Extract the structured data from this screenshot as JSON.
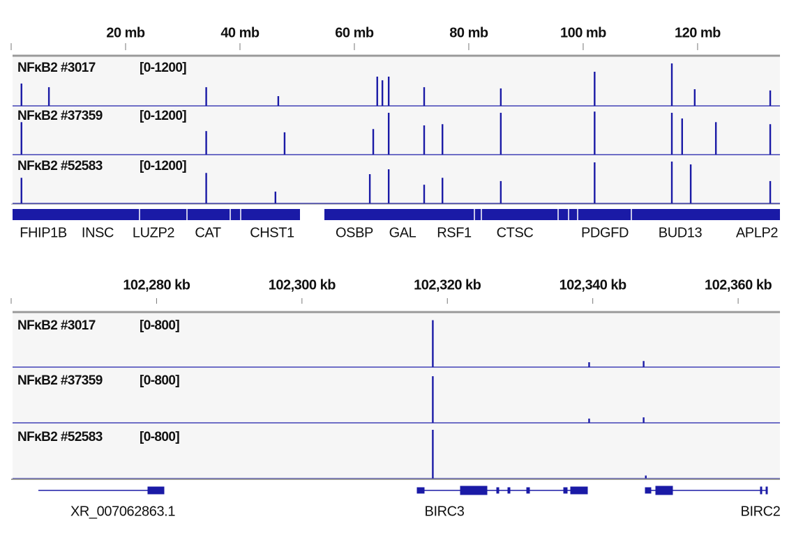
{
  "panels": [
    {
      "type": "genome-track",
      "xlim": [
        0,
        134.4
      ],
      "xticks": [
        {
          "value": 20,
          "label": "20 mb"
        },
        {
          "value": 40,
          "label": "40 mb"
        },
        {
          "value": 60,
          "label": "60 mb"
        },
        {
          "value": 80,
          "label": "80 mb"
        },
        {
          "value": 100,
          "label": "100 mb"
        },
        {
          "value": 120,
          "label": "120 mb"
        }
      ],
      "color": "#1a1aa6",
      "tracks": [
        {
          "name": "NFκB2 #3017",
          "range_label": "[0-1200]",
          "ylim": [
            0,
            1200
          ],
          "x": [
            1.8,
            6.6,
            34.1,
            46.7,
            64.0,
            64.9,
            66.0,
            72.2,
            85.6,
            102.0,
            115.5,
            119.5,
            132.7
          ],
          "values": [
            550,
            460,
            460,
            240,
            720,
            630,
            720,
            460,
            430,
            840,
            1045,
            410,
            380
          ]
        },
        {
          "name": "NFκB2 #37359",
          "range_label": "[0-1200]",
          "ylim": [
            0,
            1200
          ],
          "x": [
            1.8,
            34.1,
            47.8,
            63.3,
            66.0,
            72.2,
            75.4,
            85.6,
            102.0,
            115.5,
            117.3,
            123.2,
            132.7
          ],
          "values": [
            800,
            580,
            550,
            630,
            1030,
            720,
            750,
            1030,
            1060,
            1030,
            890,
            800,
            750
          ]
        },
        {
          "name": "NFκB2 #52583",
          "range_label": "[0-1200]",
          "ylim": [
            0,
            1200
          ],
          "x": [
            1.8,
            34.1,
            46.2,
            62.7,
            66.0,
            72.2,
            75.4,
            85.6,
            102.0,
            115.5,
            118.8,
            132.7
          ],
          "values": [
            630,
            750,
            290,
            720,
            840,
            460,
            630,
            550,
            1010,
            1030,
            960,
            550
          ]
        }
      ],
      "genes": [
        "FHIP1B",
        "INSC",
        "LUZP2",
        "CAT",
        "CHST1",
        "OSBP",
        "GAL",
        "RSF1",
        "CTSC",
        "PDGFD",
        "BUD13",
        "APLP2"
      ]
    },
    {
      "type": "genome-track",
      "xlim": [
        102260,
        102365.75
      ],
      "xticks": [
        {
          "value": 102280,
          "label": "102,280 kb"
        },
        {
          "value": 102300,
          "label": "102,300 kb"
        },
        {
          "value": 102320,
          "label": "102,320 kb"
        },
        {
          "value": 102340,
          "label": "102,340 kb"
        },
        {
          "value": 102360,
          "label": "102,360 kb"
        }
      ],
      "color": "#1a1aa6",
      "tracks": [
        {
          "name": "NFκB2 #3017",
          "range_label": "[0-800]",
          "ylim": [
            0,
            800
          ],
          "x": [
            102318.0,
            102339.5,
            102347.0
          ],
          "values": [
            770,
            80,
            100
          ]
        },
        {
          "name": "NFκB2 #37359",
          "range_label": "[0-800]",
          "ylim": [
            0,
            800
          ],
          "x": [
            102318.0,
            102339.5,
            102347.0
          ],
          "values": [
            765,
            70,
            90
          ]
        },
        {
          "name": "NFκB2 #52583",
          "range_label": "[0-800]",
          "ylim": [
            0,
            800
          ],
          "x": [
            102318.0,
            102347.3
          ],
          "values": [
            800,
            50
          ]
        }
      ],
      "genes": [
        "XR_007062863.1",
        "BIRC3",
        "BIRC2"
      ]
    }
  ]
}
